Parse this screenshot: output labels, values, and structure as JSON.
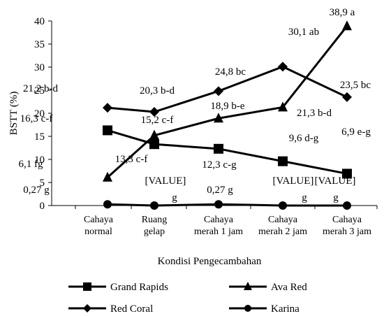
{
  "chart_data": {
    "type": "line",
    "xlabel": "Kondisi Pengecambahan",
    "ylabel": "BSTT (%)",
    "ylim": [
      0,
      40
    ],
    "yticks": [
      "0",
      "5",
      "10",
      "15",
      "20",
      "25",
      "30",
      "35",
      "40"
    ],
    "categories": [
      [
        "Cahaya",
        "normal"
      ],
      [
        "Ruang",
        "gelap"
      ],
      [
        "Cahaya",
        "merah 1 jam"
      ],
      [
        "Cahaya",
        "merah 2 jam"
      ],
      [
        "Cahaya",
        "merah 3 jam"
      ]
    ],
    "grid": false,
    "legend_position": "bottom",
    "series": [
      {
        "name": "Grand Rapids",
        "marker": "square",
        "color": "#000000",
        "values": [
          16.3,
          13.3,
          12.3,
          9.6,
          6.9
        ],
        "labels": [
          "16,3 c-f",
          "13,3 c-f",
          "12,3 c-g",
          "9,6 d-g",
          "6,9 e-g"
        ]
      },
      {
        "name": "Ava Red",
        "marker": "triangle",
        "color": "#000000",
        "values": [
          6.1,
          15.2,
          18.9,
          21.3,
          38.9
        ],
        "labels": [
          "6,1 fg",
          "15,2 c-f",
          "18,9 b-e",
          "21,3 b-d",
          "38,9 a"
        ]
      },
      {
        "name": "Red Coral",
        "marker": "diamond",
        "color": "#000000",
        "values": [
          21.2,
          20.3,
          24.8,
          30.1,
          23.5
        ],
        "labels": [
          "21,2 b-d",
          "20,3 b-d",
          "24,8 bc",
          "30,1 ab",
          "23,5 bc"
        ]
      },
      {
        "name": "Karina",
        "marker": "circle",
        "color": "#000000",
        "values": [
          0.27,
          0,
          0.27,
          0,
          0
        ],
        "labels": [
          "0,27 g",
          "[VALUE]\ng",
          "0,27 g",
          "[VALUE]\ng",
          "[VALUE]\ng"
        ]
      }
    ]
  }
}
